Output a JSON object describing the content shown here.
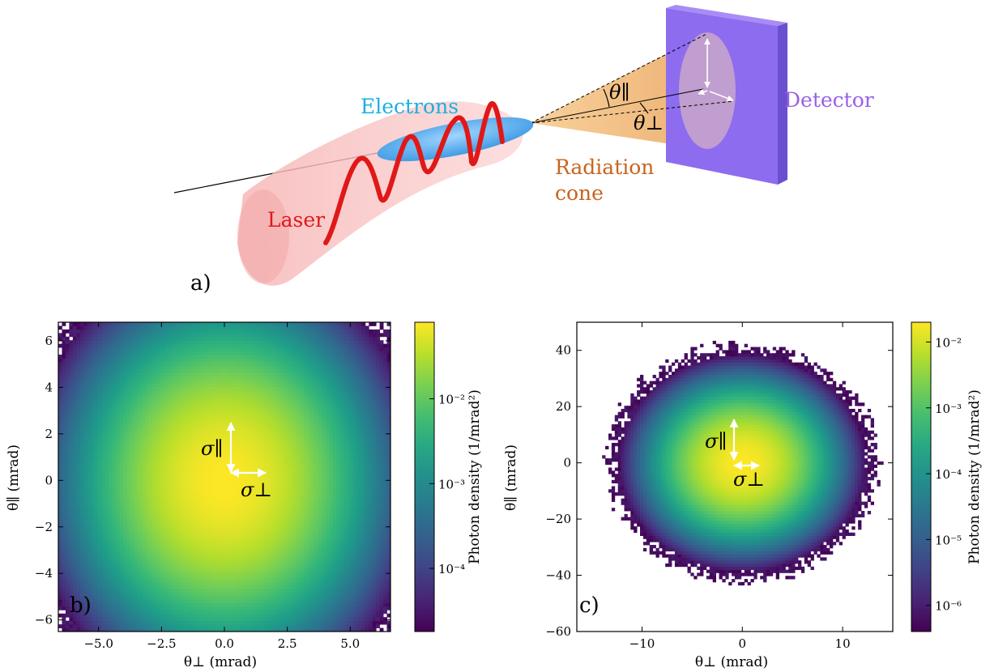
{
  "schematic": {
    "panel_label": "a)",
    "labels": {
      "electrons": "Electrons",
      "laser": "Laser",
      "radiation_line1": "Radiation",
      "radiation_line2": "cone",
      "detector": "Detector",
      "theta_par": "θ∥",
      "theta_perp": "θ⊥"
    },
    "colors": {
      "electrons": "#1ab0e0",
      "laser": "#e01818",
      "radiation": "#c8641e",
      "detector": "#9a60e6",
      "detector_face": "#7f5fe8",
      "cone": "#f4b460"
    }
  },
  "chart_data": [
    {
      "type": "heatmap",
      "panel_label": "b)",
      "xlabel": "θ⊥ (mrad)",
      "ylabel": "θ∥ (mrad)",
      "xlim": [
        -6.6,
        6.6
      ],
      "ylim": [
        -6.5,
        6.8
      ],
      "xticks": [
        -5.0,
        -2.5,
        0.0,
        2.5,
        5.0
      ],
      "xticklabels": [
        "−5.0",
        "−2.5",
        "0.0",
        "2.5",
        "5.0"
      ],
      "yticks": [
        -6,
        -4,
        -2,
        0,
        2,
        4,
        6
      ],
      "yticklabels": [
        "−6",
        "−4",
        "−2",
        "0",
        "2",
        "4",
        "6"
      ],
      "distribution": {
        "center": [
          0,
          0
        ],
        "sigma_x": 1.95,
        "sigma_y": 2.4
      },
      "colorbar": {
        "label": "Photon density (1/mrad²)",
        "scale": "log",
        "min": 1.8e-05,
        "max": 0.08,
        "ticks": [
          0.0001,
          0.001,
          0.01
        ],
        "ticklabels": [
          "10⁻⁴",
          "10⁻³",
          "10⁻²"
        ]
      },
      "annotations": {
        "sigma_par": "σ∥",
        "sigma_perp": "σ⊥"
      }
    },
    {
      "type": "heatmap",
      "panel_label": "c)",
      "xlabel": "θ⊥ (mrad)",
      "ylabel": "θ∥ (mrad)",
      "xlim": [
        -16.5,
        15
      ],
      "ylim": [
        -60,
        50
      ],
      "xticks": [
        -10,
        0,
        10
      ],
      "xticklabels": [
        "−10",
        "0",
        "10"
      ],
      "yticks": [
        -60,
        -40,
        -20,
        0,
        20,
        40
      ],
      "yticklabels": [
        "−60",
        "−40",
        "−20",
        "0",
        "20",
        "40"
      ],
      "distribution": {
        "center": [
          0,
          0
        ],
        "sigma_x": 2.7,
        "sigma_y": 8.5
      },
      "colorbar": {
        "label": "Photon density (1/mrad²)",
        "scale": "log",
        "min": 4e-07,
        "max": 0.02,
        "ticks": [
          1e-06,
          1e-05,
          0.0001,
          0.001,
          0.01
        ],
        "ticklabels": [
          "10⁻⁶",
          "10⁻⁵",
          "10⁻⁴",
          "10⁻³",
          "10⁻²"
        ]
      },
      "annotations": {
        "sigma_par": "σ∥",
        "sigma_perp": "σ⊥"
      }
    }
  ]
}
